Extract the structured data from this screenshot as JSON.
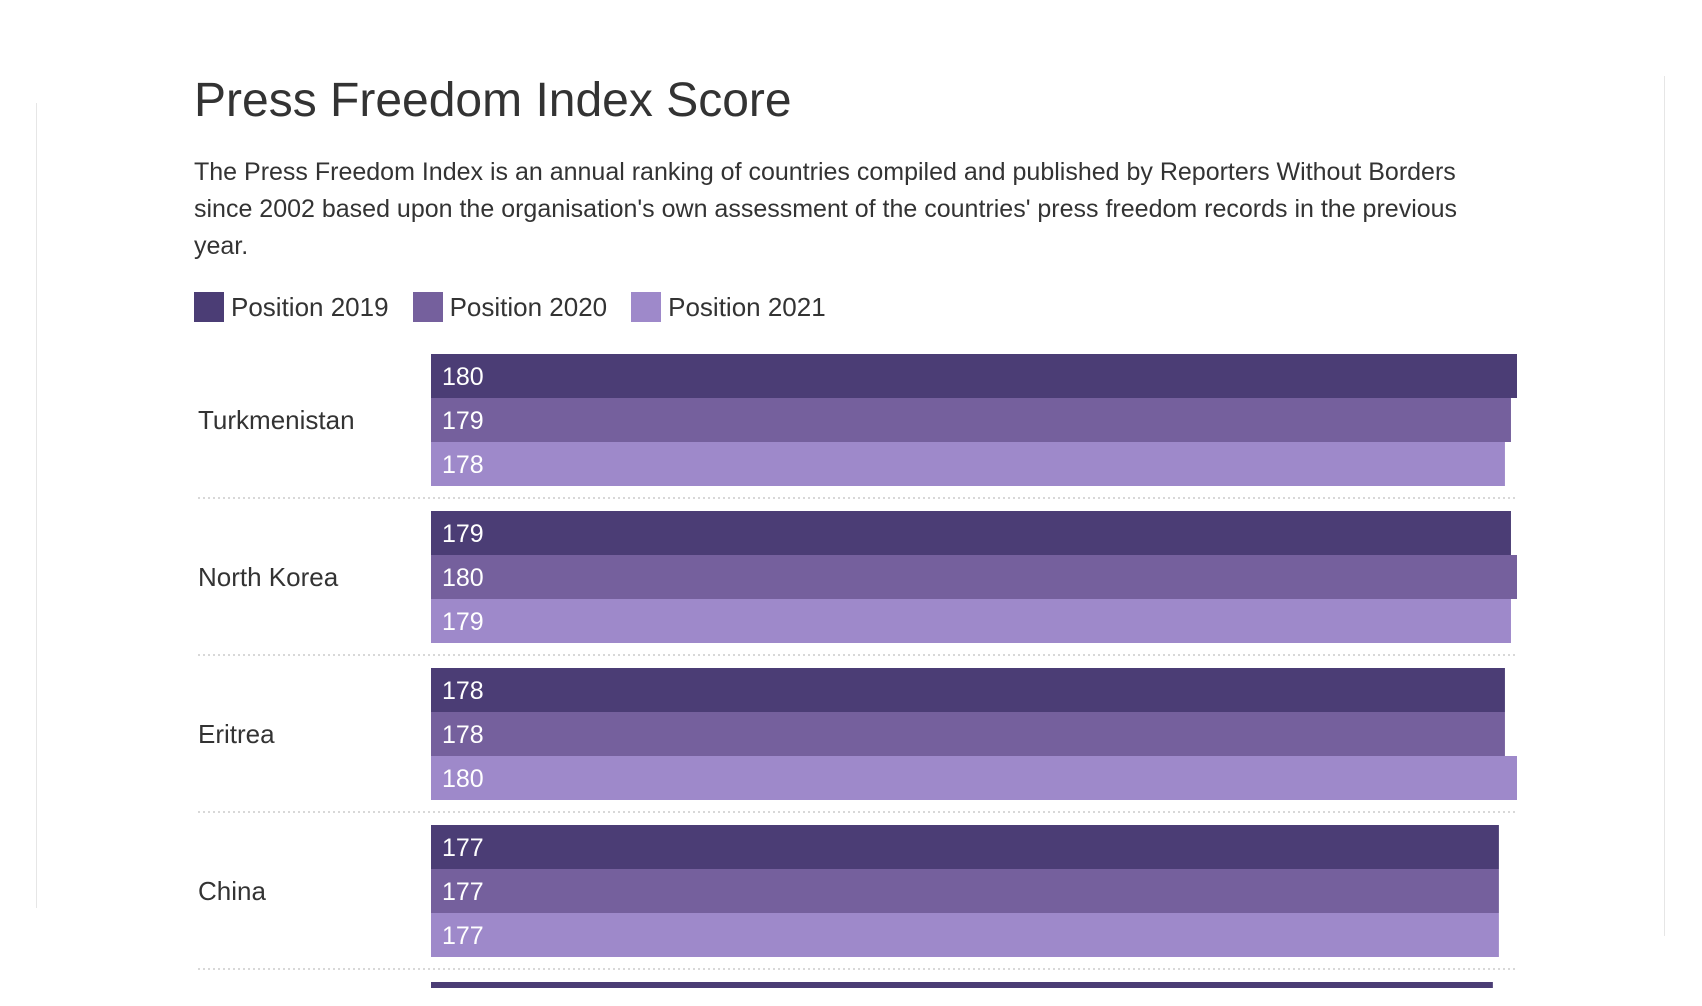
{
  "header": {
    "title": "Press Freedom Index Score",
    "description": "The Press Freedom Index is an annual ranking of countries compiled and published by Reporters Without Borders since 2002 based upon the organisation's own assessment of the countries' press freedom records in the previous year."
  },
  "colors": {
    "position_2019": "#4b3d75",
    "position_2020": "#75609d",
    "position_2021": "#9e89ca",
    "separator": "#cccccc",
    "bar_label": "#ffffff"
  },
  "chart_data": {
    "type": "bar",
    "orientation": "horizontal",
    "legend_position": "top-left",
    "grid": false,
    "xlim": [
      0,
      180
    ],
    "categories": [
      "Turkmenistan",
      "North Korea",
      "Eritrea",
      "China"
    ],
    "series": [
      {
        "name": "Position 2019",
        "color": "#4b3d75",
        "values": [
          180,
          179,
          178,
          177
        ]
      },
      {
        "name": "Position 2020",
        "color": "#75609d",
        "values": [
          179,
          180,
          178,
          177
        ]
      },
      {
        "name": "Position 2021",
        "color": "#9e89ca",
        "values": [
          178,
          179,
          180,
          177
        ]
      }
    ],
    "partial_next_row": {
      "series_index": 0,
      "value": 176
    }
  }
}
